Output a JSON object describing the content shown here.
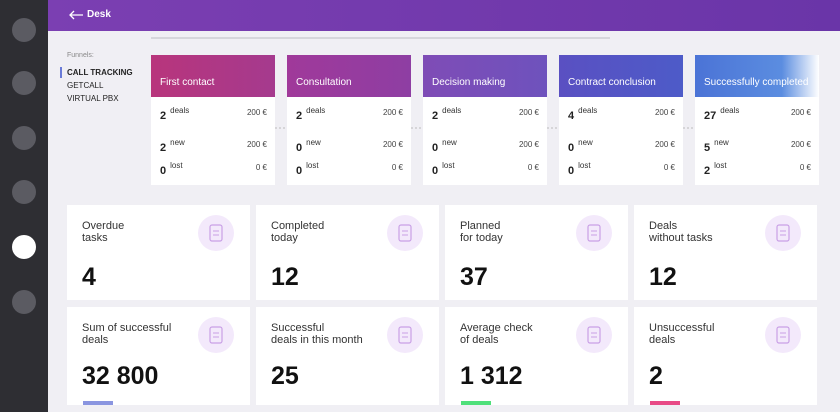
{
  "header": {
    "title": "Desk"
  },
  "funnels": {
    "label": "Funnels:",
    "items": [
      "CALL TRACKING",
      "GETCALL",
      "VIRTUAL PBX"
    ]
  },
  "stages": [
    {
      "name": "First contact",
      "rows": [
        {
          "count": "2",
          "label": "deals",
          "amount": "200 €"
        },
        {
          "count": "2",
          "label": "new",
          "amount": "200 €"
        },
        {
          "count": "0",
          "label": "lost",
          "amount": "0 €"
        }
      ]
    },
    {
      "name": "Consultation",
      "rows": [
        {
          "count": "2",
          "label": "deals",
          "amount": "200 €"
        },
        {
          "count": "0",
          "label": "new",
          "amount": "200 €"
        },
        {
          "count": "0",
          "label": "lost",
          "amount": "0 €"
        }
      ]
    },
    {
      "name": "Decision making",
      "rows": [
        {
          "count": "2",
          "label": "deals",
          "amount": "200 €"
        },
        {
          "count": "0",
          "label": "new",
          "amount": "200 €"
        },
        {
          "count": "0",
          "label": "lost",
          "amount": "0 €"
        }
      ]
    },
    {
      "name": "Contract conclusion",
      "rows": [
        {
          "count": "4",
          "label": "deals",
          "amount": "200 €"
        },
        {
          "count": "0",
          "label": "new",
          "amount": "200 €"
        },
        {
          "count": "0",
          "label": "lost",
          "amount": "0 €"
        }
      ]
    },
    {
      "name": "Successfully completed",
      "rows": [
        {
          "count": "27",
          "label": "deals",
          "amount": "200 €"
        },
        {
          "count": "5",
          "label": "new",
          "amount": "200 €"
        },
        {
          "count": "2",
          "label": "lost",
          "amount": "0 €"
        }
      ]
    }
  ],
  "cards": [
    {
      "title": "Overdue\ntasks",
      "value": "4"
    },
    {
      "title": "Completed\ntoday",
      "value": "12"
    },
    {
      "title": "Planned\nfor today",
      "value": "37"
    },
    {
      "title": "Deals\nwithout tasks",
      "value": "12"
    },
    {
      "title": "Sum of successful\ndeals",
      "value": "32 800"
    },
    {
      "title": "Successful\ndeals in this month",
      "value": "25"
    },
    {
      "title": "Average check\nof deals",
      "value": "1 312"
    },
    {
      "title": "Unsuccessful\ndeals",
      "value": "2"
    }
  ]
}
